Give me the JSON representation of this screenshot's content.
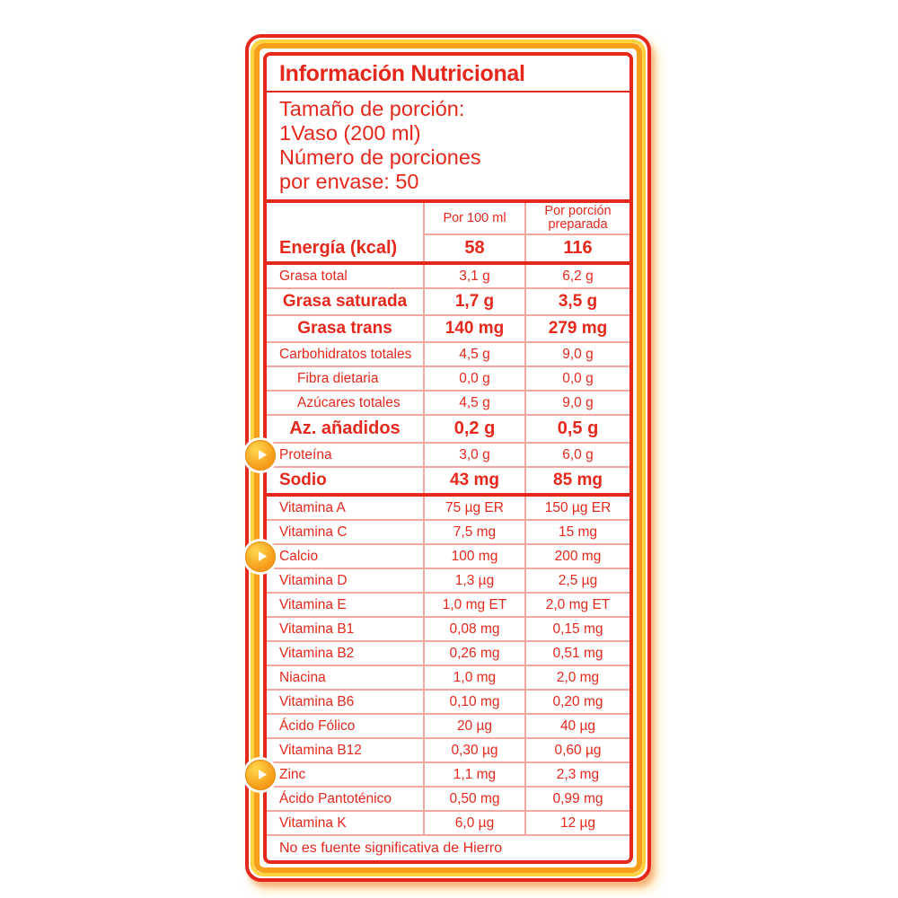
{
  "label": {
    "title": "Información Nutricional",
    "serving_lines": [
      "Tamaño de porción:",
      "1Vaso (200 ml)",
      "Número de porciones",
      "por envase: 50"
    ],
    "columns": {
      "per_100ml": "Por 100 ml",
      "per_portion": "Por porción preparada"
    },
    "energy": {
      "name": "Energía (kcal)",
      "per_100ml": "58",
      "per_portion": "116"
    },
    "rows": [
      {
        "name": "Grasa total",
        "per_100ml": "3,1 g",
        "per_portion": "6,2 g",
        "style": "normal"
      },
      {
        "name": "Grasa saturada",
        "per_100ml": "1,7 g",
        "per_portion": "3,5 g",
        "style": "bold-center"
      },
      {
        "name": "Grasa trans",
        "per_100ml": "140 mg",
        "per_portion": "279 mg",
        "style": "bold-center"
      },
      {
        "name": "Carbohidratos totales",
        "per_100ml": "4,5 g",
        "per_portion": "9,0 g",
        "style": "normal"
      },
      {
        "name": "Fibra dietaria",
        "per_100ml": "0,0 g",
        "per_portion": "0,0 g",
        "style": "indent"
      },
      {
        "name": "Azúcares totales",
        "per_100ml": "4,5 g",
        "per_portion": "9,0 g",
        "style": "indent"
      },
      {
        "name": "Az. añadidos",
        "per_100ml": "0,2 g",
        "per_portion": "0,5 g",
        "style": "bold-center big-bold"
      },
      {
        "name": "Proteína",
        "per_100ml": "3,0 g",
        "per_portion": "6,0 g",
        "style": "normal",
        "marker": true
      },
      {
        "name": "Sodio",
        "per_100ml": "43 mg",
        "per_portion": "85 mg",
        "style": "bold-left",
        "thick_after": true
      },
      {
        "name": "Vitamina A",
        "per_100ml": "75 µg ER",
        "per_portion": "150 µg ER",
        "style": "normal"
      },
      {
        "name": "Vitamina C",
        "per_100ml": "7,5 mg",
        "per_portion": "15 mg",
        "style": "normal"
      },
      {
        "name": "Calcio",
        "per_100ml": "100 mg",
        "per_portion": "200 mg",
        "style": "normal",
        "marker": true
      },
      {
        "name": "Vitamina D",
        "per_100ml": "1,3 µg",
        "per_portion": "2,5 µg",
        "style": "normal"
      },
      {
        "name": "Vitamina E",
        "per_100ml": "1,0 mg ET",
        "per_portion": "2,0 mg ET",
        "style": "normal"
      },
      {
        "name": "Vitamina B1",
        "per_100ml": "0,08 mg",
        "per_portion": "0,15 mg",
        "style": "normal"
      },
      {
        "name": "Vitamina B2",
        "per_100ml": "0,26 mg",
        "per_portion": "0,51 mg",
        "style": "normal"
      },
      {
        "name": "Niacina",
        "per_100ml": "1,0 mg",
        "per_portion": "2,0 mg",
        "style": "normal"
      },
      {
        "name": "Vitamina B6",
        "per_100ml": "0,10 mg",
        "per_portion": "0,20 mg",
        "style": "normal"
      },
      {
        "name": "Ácido Fólico",
        "per_100ml": "20 µg",
        "per_portion": "40 µg",
        "style": "normal"
      },
      {
        "name": "Vitamina B12",
        "per_100ml": "0,30 µg",
        "per_portion": "0,60 µg",
        "style": "normal"
      },
      {
        "name": "Zinc",
        "per_100ml": "1,1 mg",
        "per_portion": "2,3 mg",
        "style": "normal",
        "marker": true
      },
      {
        "name": "Ácido Pantoténico",
        "per_100ml": "0,50 mg",
        "per_portion": "0,99 mg",
        "style": "normal"
      },
      {
        "name": "Vitamina K",
        "per_100ml": "6,0 µg",
        "per_portion": "12 µg",
        "style": "normal"
      }
    ],
    "footer": "No es fuente significativa de Hierro"
  },
  "colors": {
    "red": "#E6281C",
    "pink_divider": "#F4A8A2",
    "yellow_ring": "#FFD23F",
    "orange_ring": "#F79E1B"
  },
  "icons": {
    "marker": "play-icon"
  }
}
